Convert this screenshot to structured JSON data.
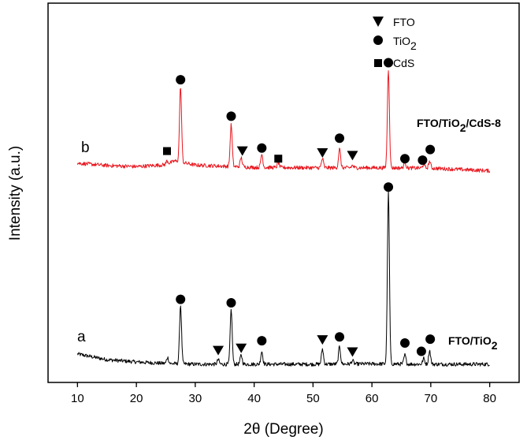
{
  "chart_data": {
    "type": "line",
    "title": "",
    "xlabel": "2θ (Degree)",
    "ylabel": "Intensity (a.u.)",
    "xlim": [
      5,
      85
    ],
    "ylim": [
      0,
      100
    ],
    "xticks": [
      10,
      20,
      30,
      40,
      50,
      60,
      70,
      80
    ],
    "xtick_labels": [
      "10",
      "20",
      "30",
      "40",
      "50",
      "60",
      "70",
      "80"
    ],
    "grid": false,
    "legend": {
      "placement": "top-right",
      "entries": [
        {
          "marker": "triangle-down",
          "label": "FTO",
          "sub": ""
        },
        {
          "marker": "circle",
          "label": "TiO",
          "sub": "2"
        },
        {
          "marker": "square",
          "label": "CdS",
          "sub": ""
        }
      ]
    },
    "series": [
      {
        "name": "a",
        "label_main": "FTO/TiO",
        "label_sub": "2",
        "label_tail": "",
        "color": "#000000",
        "x_range": [
          10,
          80
        ],
        "baseline": [
          [
            10,
            7.5
          ],
          [
            15,
            6.0
          ],
          [
            20,
            5.4
          ],
          [
            25,
            5.0
          ],
          [
            30,
            4.8
          ],
          [
            40,
            4.8
          ],
          [
            50,
            4.8
          ],
          [
            60,
            4.9
          ],
          [
            70,
            4.8
          ],
          [
            80,
            4.8
          ]
        ],
        "peaks": [
          {
            "x": 25.3,
            "height": 1.6
          },
          {
            "x": 27.5,
            "height": 15.5
          },
          {
            "x": 33.9,
            "height": 1.2
          },
          {
            "x": 36.1,
            "height": 14.4
          },
          {
            "x": 37.8,
            "height": 2.4
          },
          {
            "x": 41.3,
            "height": 3.4
          },
          {
            "x": 51.6,
            "height": 4.0
          },
          {
            "x": 54.5,
            "height": 4.6
          },
          {
            "x": 56.7,
            "height": 0.9
          },
          {
            "x": 62.8,
            "height": 45.3
          },
          {
            "x": 65.6,
            "height": 2.4
          },
          {
            "x": 68.8,
            "height": 1.5
          },
          {
            "x": 69.8,
            "height": 3.6
          }
        ]
      },
      {
        "name": "b",
        "label_main": "FTO/TiO",
        "label_sub": "2",
        "label_tail": "/CdS-8",
        "color": "#e8171f",
        "x_range": [
          10,
          80
        ],
        "baseline": [
          [
            10,
            57.8
          ],
          [
            15,
            57.2
          ],
          [
            20,
            56.9
          ],
          [
            25,
            57.4
          ],
          [
            26.5,
            58.4
          ],
          [
            30,
            57.3
          ],
          [
            40,
            56.7
          ],
          [
            50,
            56.6
          ],
          [
            60,
            56.6
          ],
          [
            70,
            56.5
          ],
          [
            80,
            55.8
          ]
        ],
        "peaks": [
          {
            "x": 25.2,
            "height": 0.9
          },
          {
            "x": 27.5,
            "height": 20.0
          },
          {
            "x": 36.1,
            "height": 11.0
          },
          {
            "x": 37.8,
            "height": 2.4
          },
          {
            "x": 41.3,
            "height": 3.5
          },
          {
            "x": 44.1,
            "height": 1.3
          },
          {
            "x": 51.6,
            "height": 2.4
          },
          {
            "x": 54.5,
            "height": 5.0
          },
          {
            "x": 56.7,
            "height": 0.6
          },
          {
            "x": 62.8,
            "height": 26.0
          },
          {
            "x": 65.6,
            "height": 1.6
          },
          {
            "x": 68.8,
            "height": 1.0
          },
          {
            "x": 69.8,
            "height": 1.8
          }
        ]
      }
    ],
    "annotations": [
      {
        "series": "a",
        "marker": "circle",
        "x": 27.5,
        "y": 21.9
      },
      {
        "series": "a",
        "marker": "triangle-down",
        "x": 33.9,
        "y": 8.4
      },
      {
        "series": "a",
        "marker": "circle",
        "x": 36.1,
        "y": 21.0
      },
      {
        "series": "a",
        "marker": "triangle-down",
        "x": 37.8,
        "y": 9.0
      },
      {
        "series": "a",
        "marker": "circle",
        "x": 41.3,
        "y": 11.0
      },
      {
        "series": "a",
        "marker": "triangle-down",
        "x": 51.6,
        "y": 11.2
      },
      {
        "series": "a",
        "marker": "circle",
        "x": 54.5,
        "y": 12.0
      },
      {
        "series": "a",
        "marker": "triangle-down",
        "x": 56.7,
        "y": 8.0
      },
      {
        "series": "a",
        "marker": "circle",
        "x": 62.8,
        "y": 51.5
      },
      {
        "series": "a",
        "marker": "circle",
        "x": 65.6,
        "y": 10.4
      },
      {
        "series": "a",
        "marker": "circle",
        "x": 68.4,
        "y": 8.2
      },
      {
        "series": "a",
        "marker": "circle",
        "x": 69.9,
        "y": 11.4
      },
      {
        "series": "b",
        "marker": "circle",
        "x": 27.5,
        "y": 79.8
      },
      {
        "series": "b",
        "marker": "square",
        "x": 25.2,
        "y": 61.0
      },
      {
        "series": "b",
        "marker": "circle",
        "x": 36.1,
        "y": 70.2
      },
      {
        "series": "b",
        "marker": "triangle-down",
        "x": 38.0,
        "y": 61.0
      },
      {
        "series": "b",
        "marker": "circle",
        "x": 41.3,
        "y": 61.8
      },
      {
        "series": "b",
        "marker": "square",
        "x": 44.1,
        "y": 59.0
      },
      {
        "series": "b",
        "marker": "triangle-down",
        "x": 51.6,
        "y": 60.5
      },
      {
        "series": "b",
        "marker": "circle",
        "x": 54.5,
        "y": 64.4
      },
      {
        "series": "b",
        "marker": "triangle-down",
        "x": 56.7,
        "y": 59.8
      },
      {
        "series": "b",
        "marker": "circle",
        "x": 62.8,
        "y": 84.3
      },
      {
        "series": "b",
        "marker": "circle",
        "x": 65.6,
        "y": 59.0
      },
      {
        "series": "b",
        "marker": "circle",
        "x": 68.6,
        "y": 58.6
      },
      {
        "series": "b",
        "marker": "circle",
        "x": 69.9,
        "y": 61.4
      }
    ]
  }
}
